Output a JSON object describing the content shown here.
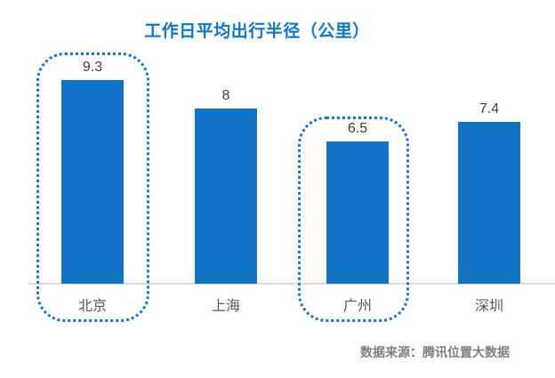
{
  "title": "工作日平均出行半径（公里）",
  "source_note": "数据来源：腾讯位置大数据",
  "colors": {
    "bar": "#1273c4",
    "title_text": "#0d76c8",
    "highlight_border": "#1a73cd",
    "axis_line": "#dcdcdc",
    "value_label": "#404040",
    "category_label": "#595959",
    "source_text": "#7f7f7f"
  },
  "chart_data": {
    "type": "bar",
    "categories": [
      "北京",
      "上海",
      "广州",
      "深圳"
    ],
    "values": [
      9.3,
      8,
      6.5,
      7.4
    ],
    "value_labels": [
      "9.3",
      "8",
      "6.5",
      "7.4"
    ],
    "title": "工作日平均出行半径（公里）",
    "xlabel": "",
    "ylabel": "",
    "ylim": [
      0,
      10
    ],
    "grid": false,
    "legend": false,
    "highlighted_categories": [
      "北京",
      "广州"
    ],
    "source_note": "数据来源：腾讯位置大数据"
  },
  "bars": [
    {
      "label": "北京",
      "value": "9.3",
      "highlighted": true
    },
    {
      "label": "上海",
      "value": "8",
      "highlighted": false
    },
    {
      "label": "广州",
      "value": "6.5",
      "highlighted": true
    },
    {
      "label": "深圳",
      "value": "7.4",
      "highlighted": false
    }
  ]
}
